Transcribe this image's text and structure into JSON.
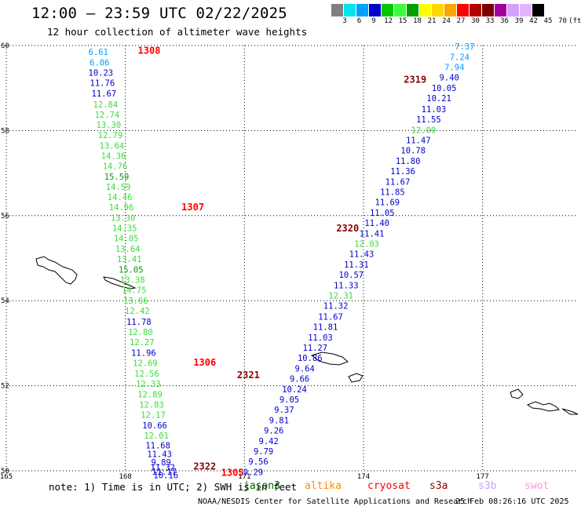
{
  "header": {
    "title": "12:00 – 23:59 UTC 02/22/2025",
    "subtitle": "12 hour collection of altimeter wave heights"
  },
  "colorbar": {
    "colors": [
      "#808080",
      "#00e5ee",
      "#00a0ff",
      "#0000cd",
      "#00c800",
      "#3cff3c",
      "#00a000",
      "#ffff00",
      "#ffd700",
      "#ffa500",
      "#ff0000",
      "#b40000",
      "#7d0000",
      "#a000a0",
      "#d2a0ff",
      "#e6b4ff",
      "#000000"
    ],
    "labels": [
      "3",
      "6",
      "9",
      "12",
      "15",
      "18",
      "21",
      "24",
      "27",
      "30",
      "33",
      "36",
      "39",
      "42",
      "45",
      "70",
      "(ft)"
    ]
  },
  "note": "note: 1) Time is in UTC; 2) SWH is in feet",
  "legend": [
    {
      "name": "jason3",
      "color": "#006400"
    },
    {
      "name": "altika",
      "color": "#ff8c00"
    },
    {
      "name": "cryosat",
      "color": "#ff0000"
    },
    {
      "name": "s3a",
      "color": "#8b0000"
    },
    {
      "name": "s3b",
      "color": "#c8a0ff"
    },
    {
      "name": "swot",
      "color": "#ff96dc"
    }
  ],
  "credit": "NOAA/NESDIS Center for Satellite Applications and Research",
  "timestamp": "25 Feb 08:26:16 UTC 2025",
  "chart_data": {
    "type": "scatter",
    "title": "12:00 – 23:59 UTC 02/22/2025",
    "subtitle": "12 hour collection of altimeter wave heights",
    "xlabel": "",
    "ylabel": "",
    "xlim": [
      165,
      179.4
    ],
    "ylim": [
      50,
      60
    ],
    "x_ticks": [
      165,
      168,
      171,
      174,
      177
    ],
    "y_ticks": [
      50,
      52,
      54,
      56,
      58,
      60
    ],
    "grid": true,
    "units": "ft",
    "series": [
      {
        "name": "cryosat",
        "color": "#ff0000",
        "pass_labels": [
          {
            "text": "1308",
            "lon": 168.6,
            "lat": 59.88
          },
          {
            "text": "1307",
            "lon": 169.7,
            "lat": 56.2
          },
          {
            "text": "1306",
            "lon": 170.0,
            "lat": 52.55
          },
          {
            "text": "1305",
            "lon": 170.7,
            "lat": 49.95
          }
        ],
        "points": [
          {
            "lon": 167.32,
            "lat": 59.85,
            "swh": 6.61
          },
          {
            "lon": 167.35,
            "lat": 59.6,
            "swh": 6.06
          },
          {
            "lon": 167.38,
            "lat": 59.36,
            "swh": 10.23
          },
          {
            "lon": 167.42,
            "lat": 59.12,
            "swh": 11.76
          },
          {
            "lon": 167.46,
            "lat": 58.87,
            "swh": 11.67
          },
          {
            "lon": 167.5,
            "lat": 58.62,
            "swh": 12.84
          },
          {
            "lon": 167.54,
            "lat": 58.38,
            "swh": 12.74
          },
          {
            "lon": 167.58,
            "lat": 58.14,
            "swh": 13.3
          },
          {
            "lon": 167.62,
            "lat": 57.9,
            "swh": 12.79
          },
          {
            "lon": 167.66,
            "lat": 57.65,
            "swh": 13.64
          },
          {
            "lon": 167.7,
            "lat": 57.41,
            "swh": 14.36
          },
          {
            "lon": 167.74,
            "lat": 57.17,
            "swh": 14.76
          },
          {
            "lon": 167.78,
            "lat": 56.92,
            "swh": 15.59
          },
          {
            "lon": 167.82,
            "lat": 56.68,
            "swh": 14.59
          },
          {
            "lon": 167.86,
            "lat": 56.44,
            "swh": 14.46
          },
          {
            "lon": 167.9,
            "lat": 56.2,
            "swh": 14.96
          },
          {
            "lon": 167.94,
            "lat": 55.95,
            "swh": 13.3
          },
          {
            "lon": 167.98,
            "lat": 55.71,
            "swh": 14.35
          },
          {
            "lon": 168.02,
            "lat": 55.47,
            "swh": 14.05
          },
          {
            "lon": 168.06,
            "lat": 55.22,
            "swh": 13.64
          },
          {
            "lon": 168.1,
            "lat": 54.98,
            "swh": 13.41
          },
          {
            "lon": 168.14,
            "lat": 54.73,
            "swh": 15.05
          },
          {
            "lon": 168.18,
            "lat": 54.49,
            "swh": 13.38
          },
          {
            "lon": 168.22,
            "lat": 54.25,
            "swh": 14.75
          },
          {
            "lon": 168.26,
            "lat": 54.0,
            "swh": 13.66
          },
          {
            "lon": 168.3,
            "lat": 53.76,
            "swh": 12.42
          },
          {
            "lon": 168.34,
            "lat": 53.51,
            "swh": 11.78
          },
          {
            "lon": 168.38,
            "lat": 53.27,
            "swh": 12.8
          },
          {
            "lon": 168.42,
            "lat": 53.03,
            "swh": 12.27
          },
          {
            "lon": 168.46,
            "lat": 52.78,
            "swh": 11.96
          },
          {
            "lon": 168.5,
            "lat": 52.54,
            "swh": 12.69
          },
          {
            "lon": 168.54,
            "lat": 52.29,
            "swh": 12.56
          },
          {
            "lon": 168.58,
            "lat": 52.05,
            "swh": 12.33
          },
          {
            "lon": 168.62,
            "lat": 51.8,
            "swh": 12.89
          },
          {
            "lon": 168.66,
            "lat": 51.56,
            "swh": 12.83
          },
          {
            "lon": 168.7,
            "lat": 51.32,
            "swh": 12.17
          },
          {
            "lon": 168.74,
            "lat": 51.07,
            "swh": 10.66
          },
          {
            "lon": 168.78,
            "lat": 50.83,
            "swh": 12.01
          },
          {
            "lon": 168.82,
            "lat": 50.6,
            "swh": 11.68
          },
          {
            "lon": 168.86,
            "lat": 50.4,
            "swh": 11.43
          },
          {
            "lon": 168.9,
            "lat": 50.2,
            "swh": 9.89
          },
          {
            "lon": 168.94,
            "lat": 50.08,
            "swh": 11.32
          },
          {
            "lon": 168.98,
            "lat": 49.98,
            "swh": 11.17
          },
          {
            "lon": 169.02,
            "lat": 49.9,
            "swh": 10.16
          }
        ]
      },
      {
        "name": "s3a",
        "color": "#8b0000",
        "pass_labels": [
          {
            "text": "2319",
            "lon": 175.3,
            "lat": 59.2
          },
          {
            "text": "2320",
            "lon": 173.6,
            "lat": 55.7
          },
          {
            "text": "2321",
            "lon": 171.1,
            "lat": 52.25
          },
          {
            "text": "2322",
            "lon": 170.0,
            "lat": 50.1
          }
        ],
        "points": [
          {
            "lon": 176.55,
            "lat": 59.98,
            "swh": 7.37
          },
          {
            "lon": 176.42,
            "lat": 59.73,
            "swh": 7.24
          },
          {
            "lon": 176.29,
            "lat": 59.49,
            "swh": 7.94
          },
          {
            "lon": 176.16,
            "lat": 59.25,
            "swh": 9.4
          },
          {
            "lon": 176.03,
            "lat": 59.0,
            "swh": 10.05
          },
          {
            "lon": 175.9,
            "lat": 58.76,
            "swh": 10.21
          },
          {
            "lon": 175.77,
            "lat": 58.51,
            "swh": 11.03
          },
          {
            "lon": 175.64,
            "lat": 58.27,
            "swh": 11.55
          },
          {
            "lon": 175.51,
            "lat": 58.02,
            "swh": 12.0
          },
          {
            "lon": 175.38,
            "lat": 57.78,
            "swh": 11.47
          },
          {
            "lon": 175.25,
            "lat": 57.54,
            "swh": 10.78
          },
          {
            "lon": 175.12,
            "lat": 57.29,
            "swh": 11.8
          },
          {
            "lon": 174.99,
            "lat": 57.05,
            "swh": 11.36
          },
          {
            "lon": 174.86,
            "lat": 56.8,
            "swh": 11.67
          },
          {
            "lon": 174.73,
            "lat": 56.56,
            "swh": 11.85
          },
          {
            "lon": 174.6,
            "lat": 56.32,
            "swh": 11.69
          },
          {
            "lon": 174.47,
            "lat": 56.07,
            "swh": 11.05
          },
          {
            "lon": 174.34,
            "lat": 55.83,
            "swh": 11.4
          },
          {
            "lon": 174.21,
            "lat": 55.58,
            "swh": 11.41
          },
          {
            "lon": 174.08,
            "lat": 55.34,
            "swh": 12.03
          },
          {
            "lon": 173.95,
            "lat": 55.1,
            "swh": 11.43
          },
          {
            "lon": 173.82,
            "lat": 54.85,
            "swh": 11.31
          },
          {
            "lon": 173.69,
            "lat": 54.61,
            "swh": 10.57
          },
          {
            "lon": 173.56,
            "lat": 54.36,
            "swh": 11.33
          },
          {
            "lon": 173.43,
            "lat": 54.12,
            "swh": 12.31
          },
          {
            "lon": 173.3,
            "lat": 53.88,
            "swh": 11.32
          },
          {
            "lon": 173.17,
            "lat": 53.63,
            "swh": 11.67
          },
          {
            "lon": 173.04,
            "lat": 53.39,
            "swh": 11.81
          },
          {
            "lon": 172.91,
            "lat": 53.14,
            "swh": 11.03
          },
          {
            "lon": 172.78,
            "lat": 52.9,
            "swh": 11.27
          },
          {
            "lon": 172.65,
            "lat": 52.66,
            "swh": 10.86
          },
          {
            "lon": 172.52,
            "lat": 52.41,
            "swh": 9.64
          },
          {
            "lon": 172.39,
            "lat": 52.17,
            "swh": 9.66
          },
          {
            "lon": 172.26,
            "lat": 51.92,
            "swh": 10.24
          },
          {
            "lon": 172.13,
            "lat": 51.68,
            "swh": 9.05
          },
          {
            "lon": 172.0,
            "lat": 51.44,
            "swh": 9.37
          },
          {
            "lon": 171.87,
            "lat": 51.19,
            "swh": 9.81
          },
          {
            "lon": 171.74,
            "lat": 50.95,
            "swh": 9.26
          },
          {
            "lon": 171.61,
            "lat": 50.7,
            "swh": 9.42
          },
          {
            "lon": 171.48,
            "lat": 50.46,
            "swh": 9.79
          },
          {
            "lon": 171.35,
            "lat": 50.22,
            "swh": 9.56
          },
          {
            "lon": 171.22,
            "lat": 49.97,
            "swh": 9.29
          }
        ]
      }
    ]
  }
}
